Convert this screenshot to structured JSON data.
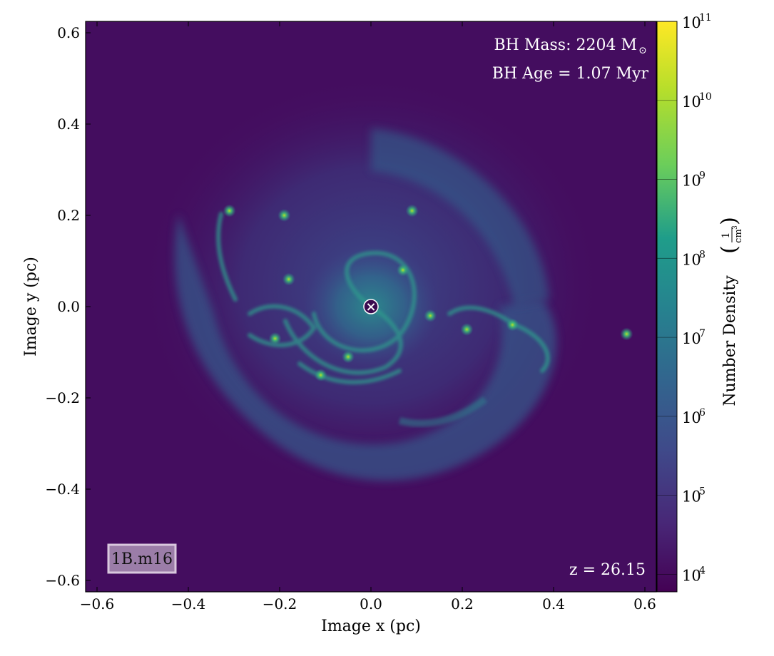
{
  "chart_data": {
    "type": "heatmap",
    "xlabel": "Image x  (pc)",
    "ylabel": "Image y  (pc)",
    "xlim": [
      -0.625,
      0.625
    ],
    "ylim": [
      -0.625,
      0.625
    ],
    "x_ticks": [
      -0.6,
      -0.4,
      -0.2,
      0.0,
      0.2,
      0.4,
      0.6
    ],
    "x_tick_labels": [
      "−0.6",
      "−0.4",
      "−0.2",
      "0.0",
      "0.2",
      "0.4",
      "0.6"
    ],
    "y_ticks": [
      0.6,
      0.4,
      0.2,
      0.0,
      -0.2,
      -0.4,
      -0.6
    ],
    "y_tick_labels": [
      "0.6",
      "0.4",
      "0.2",
      "0.0",
      "−0.2",
      "−0.4",
      "−0.6"
    ],
    "colorbar": {
      "label": "Number Density",
      "unit_numerator": "1",
      "unit_denominator": "cm",
      "unit_denominator_exp": "3",
      "scale": "log",
      "range": [
        6000,
        100000000000
      ],
      "colormap": "viridis",
      "colors": [
        "#440154",
        "#482777",
        "#3f4a8a",
        "#31678e",
        "#26838f",
        "#1f9d8a",
        "#6cce5a",
        "#b6de2b",
        "#fee825"
      ],
      "tick_exponents": [
        "11",
        "10",
        "9",
        "8",
        "7",
        "6",
        "5",
        "4"
      ],
      "tick_values": [
        100000000000,
        10000000000,
        1000000000,
        100000000,
        10000000,
        1000000,
        100000,
        10000
      ],
      "tick_base": "10"
    },
    "annotations": {
      "bh_mass_text": "BH Mass: 2204 M",
      "bh_mass_symbol": "⊙",
      "bh_age_text": "BH Age = 1.07 Myr",
      "redshift_text": "z = 26.15",
      "run_label": "1B.m16"
    },
    "black_hole_marker": {
      "x": 0.0,
      "y": 0.0,
      "symbol": "×"
    },
    "dense_clumps": [
      {
        "x": -0.31,
        "y": 0.21
      },
      {
        "x": -0.19,
        "y": 0.2
      },
      {
        "x": 0.09,
        "y": 0.21
      },
      {
        "x": -0.18,
        "y": 0.06
      },
      {
        "x": -0.21,
        "y": -0.07
      },
      {
        "x": 0.07,
        "y": 0.08
      },
      {
        "x": 0.21,
        "y": -0.05
      },
      {
        "x": 0.31,
        "y": -0.04
      },
      {
        "x": 0.56,
        "y": -0.06
      },
      {
        "x": -0.11,
        "y": -0.15
      },
      {
        "x": 0.13,
        "y": -0.02
      },
      {
        "x": -0.05,
        "y": -0.11
      }
    ]
  }
}
